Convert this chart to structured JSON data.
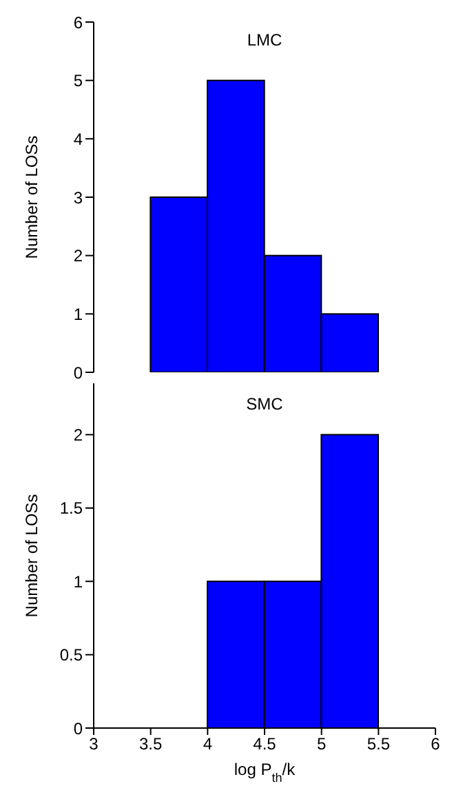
{
  "chart_data": [
    {
      "type": "histogram",
      "title": "LMC",
      "ylabel": "Number of LOSs",
      "bins": [
        3.5,
        4,
        4.5,
        5,
        5.5
      ],
      "values": [
        3,
        5,
        2,
        1
      ],
      "color": "#0000ff",
      "xlim": [
        3,
        6
      ],
      "xticks": [
        3,
        3.5,
        4,
        4.5,
        5,
        5.5,
        6
      ],
      "ylim": [
        0,
        6
      ],
      "yticks": [
        0,
        1,
        2,
        3,
        4,
        5,
        6
      ],
      "tick_labels": "y",
      "grid": false,
      "legend": false
    },
    {
      "type": "histogram",
      "title": "SMC",
      "ylabel": "Number of LOSs",
      "xlabel": "log P$_{th}$/k",
      "bins": [
        4,
        4.5,
        5,
        5.5
      ],
      "values": [
        1,
        1,
        2
      ],
      "color": "#0000ff",
      "xlim": [
        3,
        6
      ],
      "xticks": [
        3,
        3.5,
        4,
        4.5,
        5,
        5.5,
        6
      ],
      "ylim": [
        0,
        2.35
      ],
      "yticks": [
        0,
        0.5,
        1,
        1.5,
        2
      ],
      "grid": false,
      "legend": false
    }
  ]
}
